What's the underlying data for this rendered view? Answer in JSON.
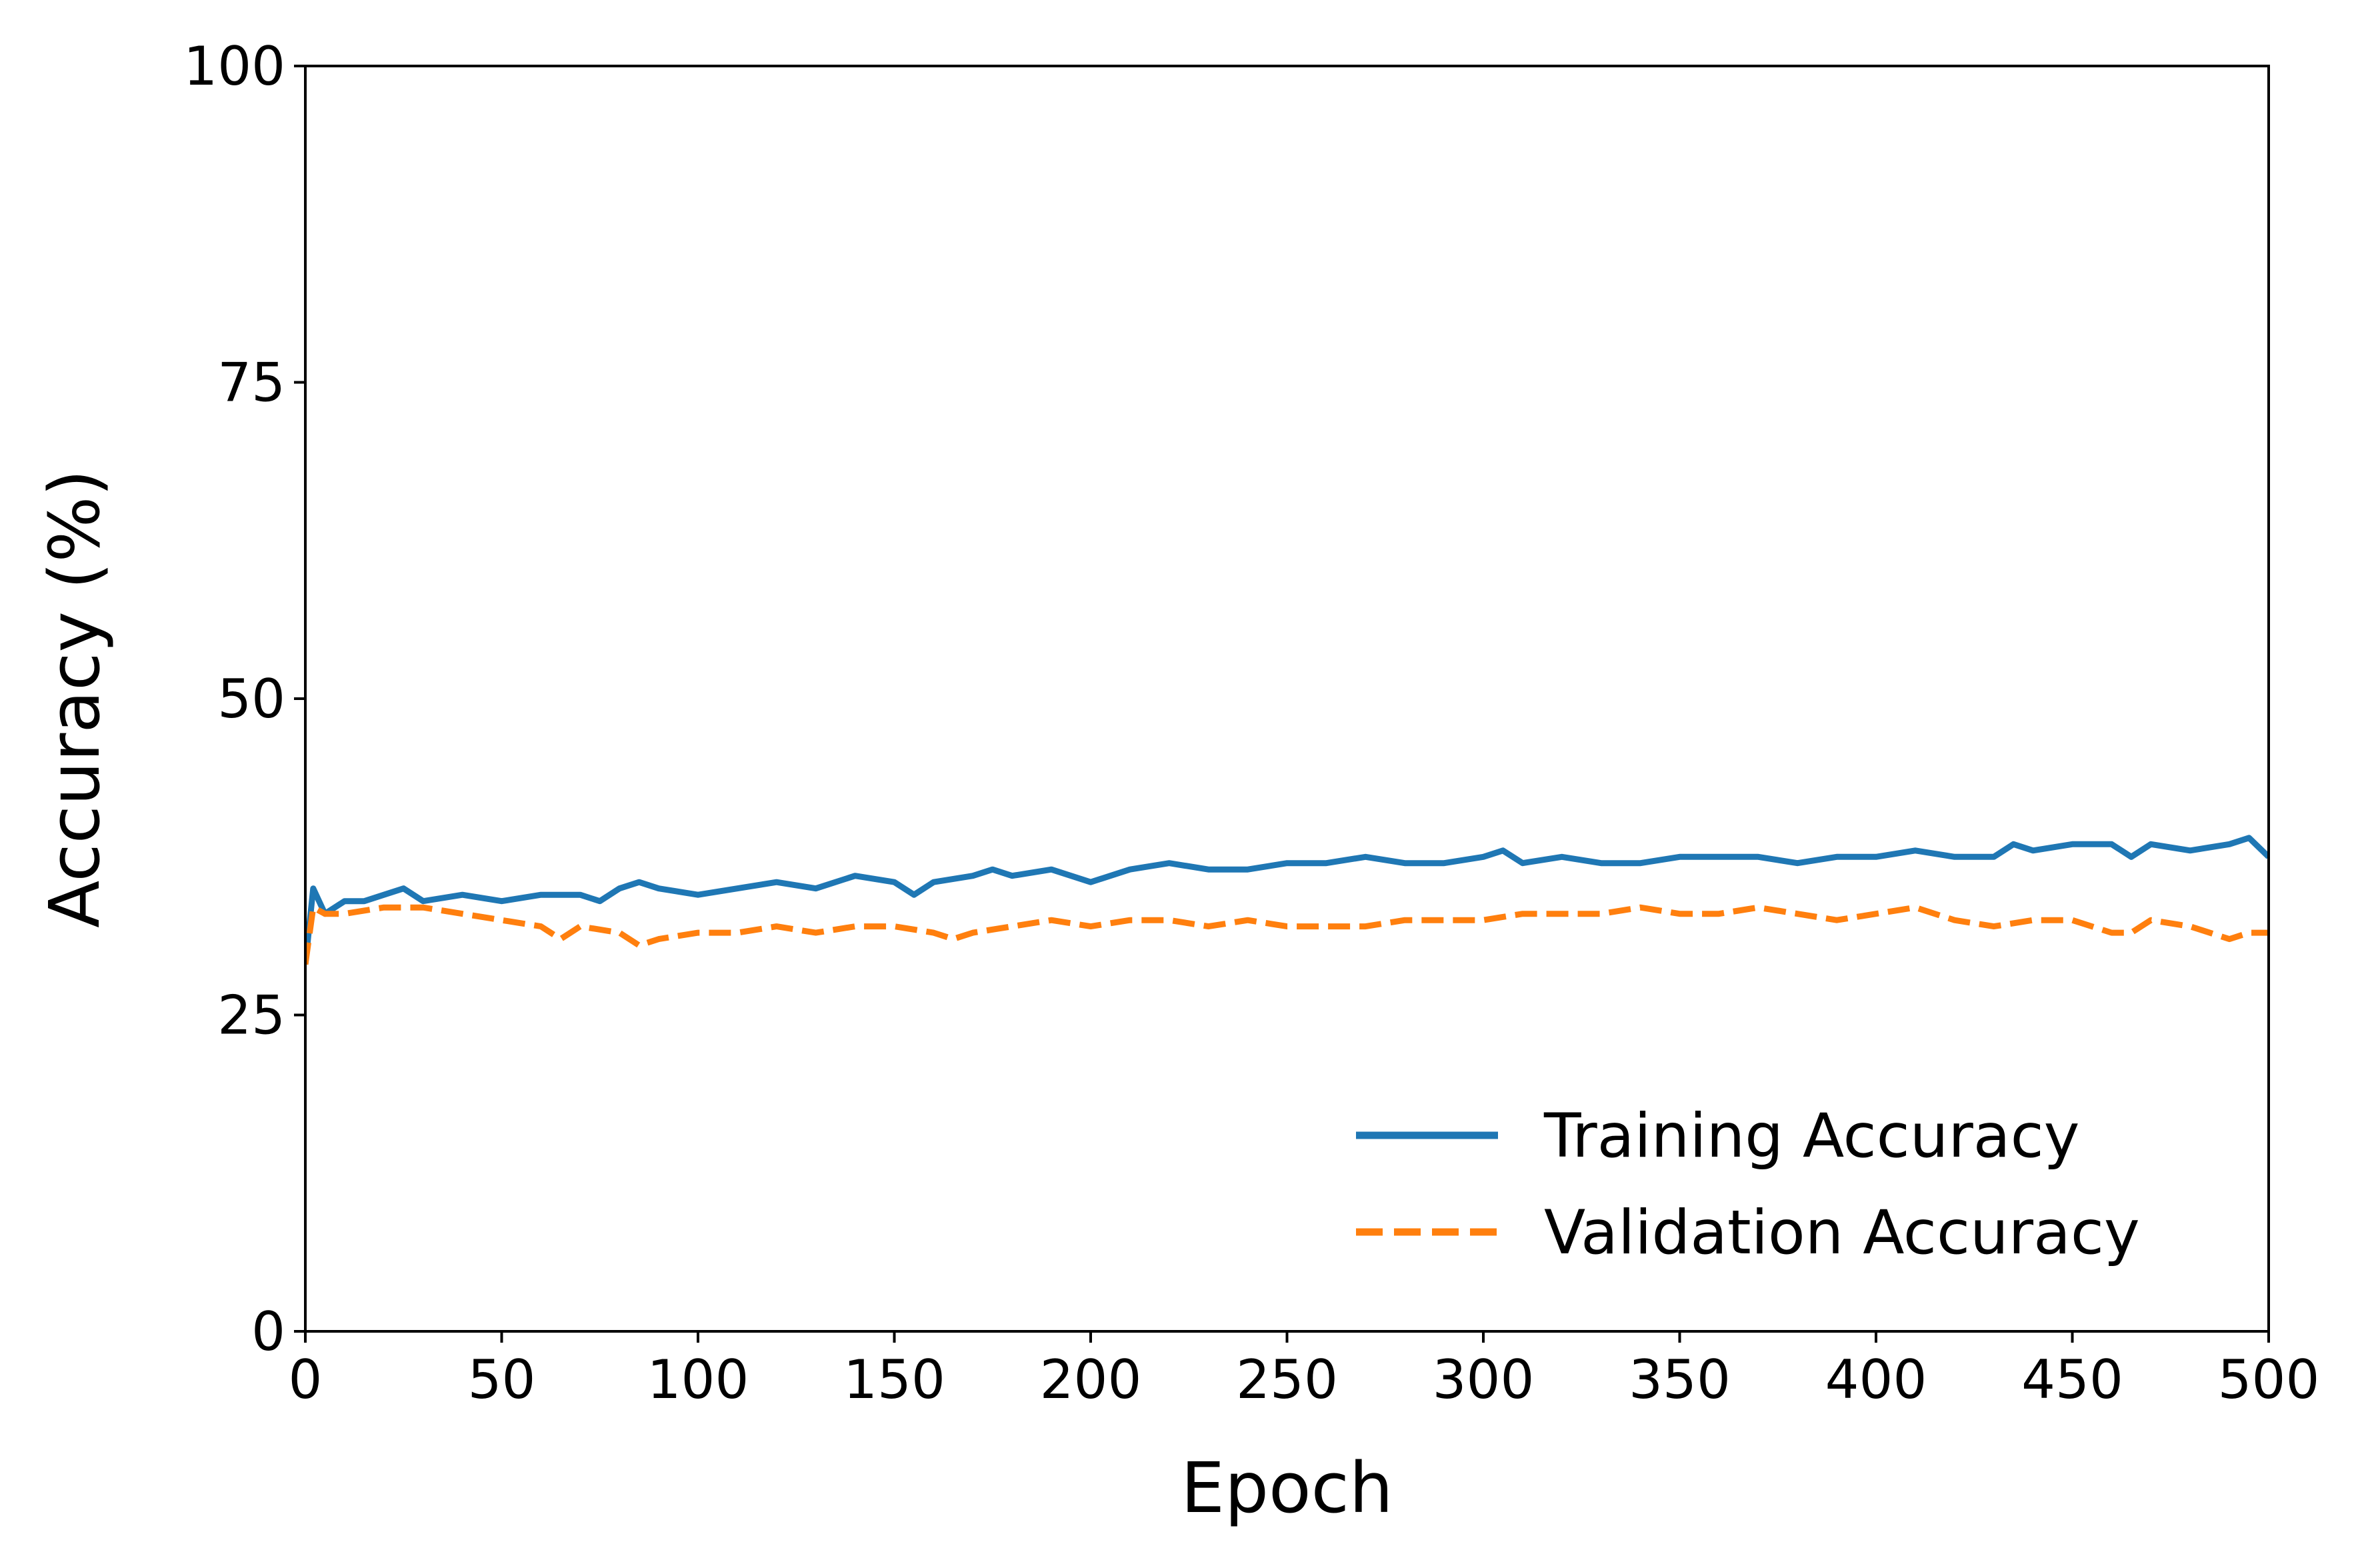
{
  "chart_data": {
    "type": "line",
    "title": "",
    "xlabel": "Epoch",
    "ylabel": "Accuracy (%)",
    "xlim": [
      0,
      500
    ],
    "ylim": [
      0,
      100
    ],
    "xticks": [
      "0",
      "50",
      "100",
      "150",
      "200",
      "250",
      "300",
      "350",
      "400",
      "450",
      "500"
    ],
    "yticks": [
      "0",
      "25",
      "50",
      "75",
      "100"
    ],
    "grid": false,
    "legend_position": "lower-right",
    "series": [
      {
        "name": "Training Accuracy",
        "color": "#1f77b4",
        "line_style": "solid",
        "x": [
          0,
          2,
          5,
          10,
          15,
          20,
          25,
          30,
          40,
          50,
          60,
          70,
          75,
          80,
          85,
          90,
          100,
          110,
          120,
          130,
          140,
          150,
          155,
          160,
          170,
          175,
          180,
          190,
          200,
          210,
          220,
          230,
          240,
          250,
          260,
          270,
          280,
          290,
          300,
          305,
          310,
          320,
          330,
          340,
          350,
          360,
          370,
          380,
          390,
          400,
          410,
          420,
          430,
          435,
          440,
          450,
          460,
          465,
          470,
          480,
          490,
          495,
          500
        ],
        "y": [
          29.0,
          35.0,
          33.0,
          34.0,
          34.0,
          34.5,
          35.0,
          34.0,
          34.5,
          34.0,
          34.5,
          34.5,
          34.0,
          35.0,
          35.5,
          35.0,
          34.5,
          35.0,
          35.5,
          35.0,
          36.0,
          35.5,
          34.5,
          35.5,
          36.0,
          36.5,
          36.0,
          36.5,
          35.5,
          36.5,
          37.0,
          36.5,
          36.5,
          37.0,
          37.0,
          37.5,
          37.0,
          37.0,
          37.5,
          38.0,
          37.0,
          37.5,
          37.0,
          37.0,
          37.5,
          37.5,
          37.5,
          37.0,
          37.5,
          37.5,
          38.0,
          37.5,
          37.5,
          38.5,
          38.0,
          38.5,
          38.5,
          37.5,
          38.5,
          38.0,
          38.5,
          39.0,
          37.5
        ]
      },
      {
        "name": "Validation Accuracy",
        "color": "#ff7f0e",
        "line_style": "dashed",
        "x": [
          0,
          2,
          5,
          10,
          20,
          30,
          40,
          50,
          60,
          65,
          70,
          80,
          85,
          90,
          100,
          110,
          120,
          130,
          140,
          150,
          160,
          165,
          170,
          180,
          190,
          200,
          210,
          220,
          230,
          240,
          250,
          260,
          270,
          280,
          290,
          300,
          310,
          320,
          330,
          340,
          350,
          360,
          370,
          380,
          390,
          400,
          410,
          420,
          430,
          440,
          450,
          460,
          465,
          470,
          480,
          490,
          495,
          500
        ],
        "y": [
          29.0,
          33.5,
          33.0,
          33.0,
          33.5,
          33.5,
          33.0,
          32.5,
          32.0,
          31.0,
          32.0,
          31.5,
          30.5,
          31.0,
          31.5,
          31.5,
          32.0,
          31.5,
          32.0,
          32.0,
          31.5,
          31.0,
          31.5,
          32.0,
          32.5,
          32.0,
          32.5,
          32.5,
          32.0,
          32.5,
          32.0,
          32.0,
          32.0,
          32.5,
          32.5,
          32.5,
          33.0,
          33.0,
          33.0,
          33.5,
          33.0,
          33.0,
          33.5,
          33.0,
          32.5,
          33.0,
          33.5,
          32.5,
          32.0,
          32.5,
          32.5,
          31.5,
          31.5,
          32.5,
          32.0,
          31.0,
          31.5,
          31.5
        ]
      }
    ]
  }
}
